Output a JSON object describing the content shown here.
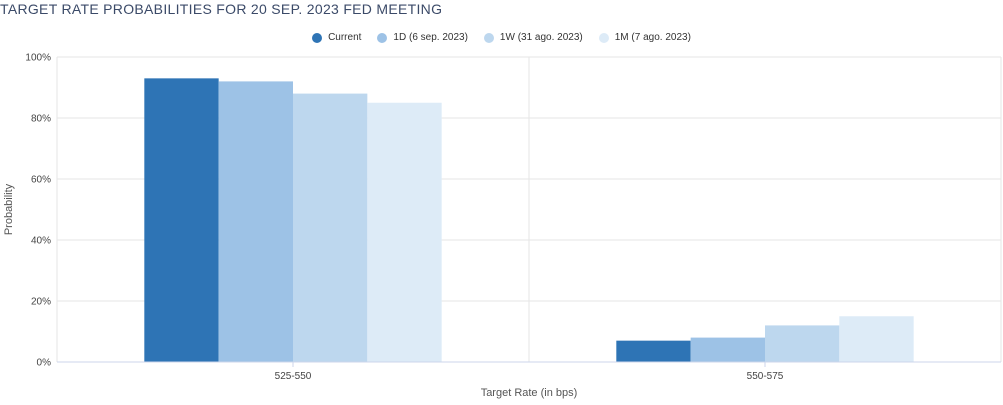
{
  "chart_data": {
    "type": "bar",
    "title": "TARGET RATE PROBABILITIES FOR 20 SEP. 2023 FED MEETING",
    "xlabel": "Target Rate (in bps)",
    "ylabel": "Probability",
    "categories": [
      "525-550",
      "550-575"
    ],
    "ylim": [
      0,
      100
    ],
    "yticks": [
      "0%",
      "20%",
      "40%",
      "60%",
      "80%",
      "100%"
    ],
    "grid": true,
    "legend_position": "top-center",
    "series": [
      {
        "name": "Current",
        "color": "#2e74b5",
        "values": [
          93,
          7
        ]
      },
      {
        "name": "1D (6 sep. 2023)",
        "color": "#9dc2e6",
        "values": [
          92,
          8
        ]
      },
      {
        "name": "1W (31 ago. 2023)",
        "color": "#bdd7ee",
        "values": [
          88,
          12
        ]
      },
      {
        "name": "1M (7 ago. 2023)",
        "color": "#ddebf7",
        "values": [
          85,
          15
        ]
      }
    ]
  }
}
